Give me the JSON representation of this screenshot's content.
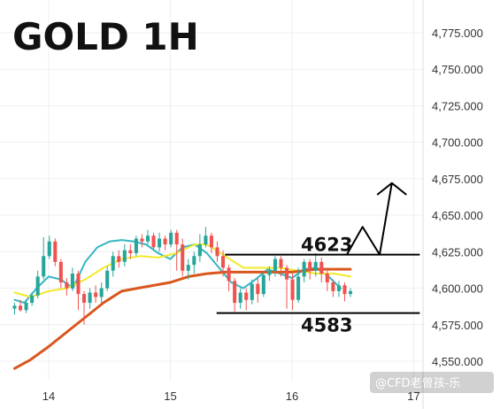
{
  "chart_data": {
    "type": "candlestick",
    "title": "GOLD 1H",
    "watermark": "@CFD老曾孩-乐",
    "y_ticks": [
      "4,775.000",
      "4,750.000",
      "4,725.000",
      "4,700.000",
      "4,675.000",
      "4,650.000",
      "4,625.000",
      "4,600.000",
      "4,575.000",
      "4,550.000"
    ],
    "x_ticks": [
      "14",
      "15",
      "16",
      "17"
    ],
    "ylim": [
      4540,
      4790
    ],
    "xlim": [
      13.72,
      17.08
    ],
    "grid": true,
    "levels": [
      {
        "label": "4623",
        "value": 4623,
        "from": 15.45,
        "to": 17.05
      },
      {
        "label": "4583",
        "value": 4583,
        "from": 15.38,
        "to": 17.05
      }
    ],
    "projection": [
      [
        16.45,
        4623
      ],
      [
        16.58,
        4642
      ],
      [
        16.72,
        4623
      ],
      [
        16.82,
        4672
      ],
      [
        16.94,
        4664
      ]
    ],
    "series": [
      {
        "name": "",
        "color": "#34b6c4",
        "values": [
          [
            13.72,
            4592
          ],
          [
            13.8,
            4590
          ],
          [
            13.9,
            4600
          ],
          [
            14.0,
            4608
          ],
          [
            14.1,
            4606
          ],
          [
            14.2,
            4600
          ],
          [
            14.3,
            4618
          ],
          [
            14.4,
            4628
          ],
          [
            14.5,
            4632
          ],
          [
            14.6,
            4633
          ],
          [
            14.7,
            4632
          ],
          [
            14.8,
            4630
          ],
          [
            14.9,
            4624
          ],
          [
            15.0,
            4620
          ],
          [
            15.1,
            4628
          ],
          [
            15.2,
            4630
          ],
          [
            15.3,
            4624
          ],
          [
            15.4,
            4614
          ],
          [
            15.5,
            4604
          ],
          [
            15.6,
            4600
          ],
          [
            15.7,
            4606
          ],
          [
            15.8,
            4613
          ],
          [
            15.9,
            4610
          ],
          [
            16.0,
            4607
          ],
          [
            16.1,
            4613
          ],
          [
            16.2,
            4614
          ],
          [
            16.3,
            4608
          ],
          [
            16.4,
            4600
          ]
        ]
      },
      {
        "name": "",
        "color": "#f2ea2a",
        "values": [
          [
            13.72,
            4597
          ],
          [
            13.85,
            4594
          ],
          [
            14.0,
            4598
          ],
          [
            14.15,
            4600
          ],
          [
            14.3,
            4606
          ],
          [
            14.45,
            4614
          ],
          [
            14.6,
            4620
          ],
          [
            14.75,
            4622
          ],
          [
            14.9,
            4621
          ],
          [
            15.05,
            4624
          ],
          [
            15.2,
            4630
          ],
          [
            15.3,
            4630
          ],
          [
            15.45,
            4622
          ],
          [
            15.6,
            4614
          ],
          [
            15.75,
            4614
          ],
          [
            15.9,
            4614
          ],
          [
            16.05,
            4612
          ],
          [
            16.2,
            4610
          ],
          [
            16.35,
            4610
          ],
          [
            16.48,
            4608
          ]
        ]
      },
      {
        "name": "",
        "color": "#d9571d",
        "values": [
          [
            13.72,
            4545
          ],
          [
            13.85,
            4551
          ],
          [
            14.0,
            4560
          ],
          [
            14.15,
            4570
          ],
          [
            14.3,
            4580
          ],
          [
            14.45,
            4590
          ],
          [
            14.6,
            4598
          ],
          [
            14.8,
            4601
          ],
          [
            15.0,
            4604
          ],
          [
            15.15,
            4608
          ],
          [
            15.3,
            4610
          ],
          [
            15.45,
            4611
          ],
          [
            15.6,
            4611
          ],
          [
            15.8,
            4611
          ],
          [
            16.0,
            4611
          ],
          [
            16.2,
            4613
          ],
          [
            16.35,
            4613
          ],
          [
            16.48,
            4613
          ]
        ]
      }
    ],
    "candles": [
      [
        4586,
        4588,
        4582,
        4590
      ],
      [
        4588,
        4585,
        4584,
        4592
      ],
      [
        4585,
        4590,
        4583,
        4592
      ],
      [
        4590,
        4595,
        4588,
        4597
      ],
      [
        4595,
        4608,
        4593,
        4612
      ],
      [
        4608,
        4622,
        4606,
        4635
      ],
      [
        4622,
        4632,
        4620,
        4636
      ],
      [
        4632,
        4618,
        4615,
        4634
      ],
      [
        4618,
        4604,
        4600,
        4620
      ],
      [
        4604,
        4600,
        4595,
        4607
      ],
      [
        4600,
        4610,
        4598,
        4614
      ],
      [
        4610,
        4596,
        4585,
        4612
      ],
      [
        4596,
        4590,
        4575,
        4598
      ],
      [
        4590,
        4597,
        4586,
        4600
      ],
      [
        4597,
        4594,
        4590,
        4602
      ],
      [
        4594,
        4600,
        4590,
        4604
      ],
      [
        4600,
        4612,
        4598,
        4615
      ],
      [
        4612,
        4622,
        4608,
        4625
      ],
      [
        4622,
        4618,
        4614,
        4626
      ],
      [
        4618,
        4626,
        4615,
        4630
      ],
      [
        4626,
        4624,
        4620,
        4630
      ],
      [
        4624,
        4634,
        4622,
        4636
      ],
      [
        4634,
        4632,
        4628,
        4637
      ],
      [
        4632,
        4636,
        4630,
        4640
      ],
      [
        4636,
        4628,
        4626,
        4638
      ],
      [
        4628,
        4634,
        4625,
        4638
      ],
      [
        4634,
        4630,
        4626,
        4636
      ],
      [
        4630,
        4638,
        4628,
        4640
      ],
      [
        4638,
        4630,
        4612,
        4640
      ],
      [
        4630,
        4612,
        4608,
        4634
      ],
      [
        4612,
        4616,
        4606,
        4620
      ],
      [
        4616,
        4622,
        4610,
        4625
      ],
      [
        4622,
        4630,
        4618,
        4637
      ],
      [
        4630,
        4636,
        4628,
        4642
      ],
      [
        4636,
        4628,
        4624,
        4638
      ],
      [
        4628,
        4622,
        4618,
        4632
      ],
      [
        4622,
        4614,
        4608,
        4626
      ],
      [
        4614,
        4605,
        4598,
        4616
      ],
      [
        4605,
        4590,
        4584,
        4607
      ],
      [
        4590,
        4597,
        4586,
        4600
      ],
      [
        4597,
        4592,
        4585,
        4600
      ],
      [
        4592,
        4603,
        4589,
        4606
      ],
      [
        4603,
        4596,
        4590,
        4607
      ],
      [
        4596,
        4609,
        4594,
        4612
      ],
      [
        4609,
        4612,
        4605,
        4615
      ],
      [
        4612,
        4620,
        4608,
        4622
      ],
      [
        4620,
        4614,
        4608,
        4622
      ],
      [
        4614,
        4606,
        4586,
        4616
      ],
      [
        4606,
        4592,
        4585,
        4610
      ],
      [
        4592,
        4608,
        4590,
        4614
      ],
      [
        4608,
        4618,
        4604,
        4620
      ],
      [
        4618,
        4612,
        4606,
        4620
      ],
      [
        4612,
        4618,
        4608,
        4624
      ],
      [
        4618,
        4610,
        4604,
        4621
      ],
      [
        4610,
        4604,
        4598,
        4614
      ],
      [
        4604,
        4598,
        4594,
        4606
      ],
      [
        4598,
        4602,
        4594,
        4605
      ],
      [
        4602,
        4596,
        4591,
        4604
      ],
      [
        4596,
        4598,
        4594,
        4600
      ]
    ],
    "candle_x": [
      13.72,
      16.48
    ]
  }
}
